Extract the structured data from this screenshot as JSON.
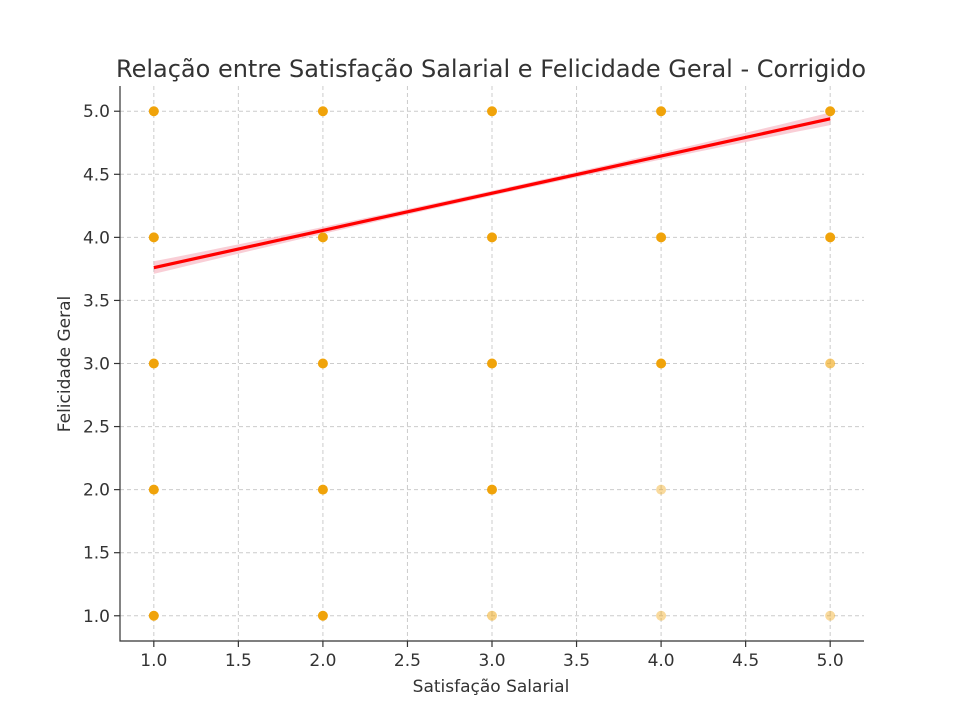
{
  "chart_data": {
    "type": "scatter",
    "title": "Relação entre Satisfação Salarial e Felicidade Geral - Corrigido",
    "xlabel": "Satisfação Salarial",
    "ylabel": "Felicidade Geral",
    "xlim": [
      0.8,
      5.2
    ],
    "ylim": [
      0.8,
      5.2
    ],
    "xticks": [
      1.0,
      1.5,
      2.0,
      2.5,
      3.0,
      3.5,
      4.0,
      4.5,
      5.0
    ],
    "yticks": [
      1.0,
      1.5,
      2.0,
      2.5,
      3.0,
      3.5,
      4.0,
      4.5,
      5.0
    ],
    "xtick_labels": [
      "1.0",
      "1.5",
      "2.0",
      "2.5",
      "3.0",
      "3.5",
      "4.0",
      "4.5",
      "5.0"
    ],
    "ytick_labels": [
      "1.0",
      "1.5",
      "2.0",
      "2.5",
      "3.0",
      "3.5",
      "4.0",
      "4.5",
      "5.0"
    ],
    "grid": true,
    "points": [
      {
        "x": 1,
        "y": 5,
        "opacity": 1.0
      },
      {
        "x": 2,
        "y": 5,
        "opacity": 1.0
      },
      {
        "x": 3,
        "y": 5,
        "opacity": 1.0
      },
      {
        "x": 4,
        "y": 5,
        "opacity": 1.0
      },
      {
        "x": 5,
        "y": 5,
        "opacity": 1.0
      },
      {
        "x": 1,
        "y": 4,
        "opacity": 1.0
      },
      {
        "x": 2,
        "y": 4,
        "opacity": 1.0
      },
      {
        "x": 3,
        "y": 4,
        "opacity": 1.0
      },
      {
        "x": 4,
        "y": 4,
        "opacity": 1.0
      },
      {
        "x": 5,
        "y": 4,
        "opacity": 1.0
      },
      {
        "x": 1,
        "y": 3,
        "opacity": 1.0
      },
      {
        "x": 2,
        "y": 3,
        "opacity": 1.0
      },
      {
        "x": 3,
        "y": 3,
        "opacity": 1.0
      },
      {
        "x": 4,
        "y": 3,
        "opacity": 1.0
      },
      {
        "x": 5,
        "y": 3,
        "opacity": 0.6
      },
      {
        "x": 1,
        "y": 2,
        "opacity": 1.0
      },
      {
        "x": 2,
        "y": 2,
        "opacity": 1.0
      },
      {
        "x": 3,
        "y": 2,
        "opacity": 1.0
      },
      {
        "x": 4,
        "y": 2,
        "opacity": 0.4
      },
      {
        "x": 1,
        "y": 1,
        "opacity": 1.0
      },
      {
        "x": 2,
        "y": 1,
        "opacity": 1.0
      },
      {
        "x": 3,
        "y": 1,
        "opacity": 0.5
      },
      {
        "x": 4,
        "y": 1,
        "opacity": 0.4
      },
      {
        "x": 5,
        "y": 1,
        "opacity": 0.4
      }
    ],
    "regression": {
      "x": [
        1.0,
        5.0
      ],
      "y": [
        3.76,
        4.94
      ],
      "ci_half_width_at_ends": 0.05,
      "ci_half_width_at_mid": 0.02
    },
    "colors": {
      "point": "#F0A30A",
      "line": "#FF0000",
      "ci": "#F4A6B4"
    }
  }
}
